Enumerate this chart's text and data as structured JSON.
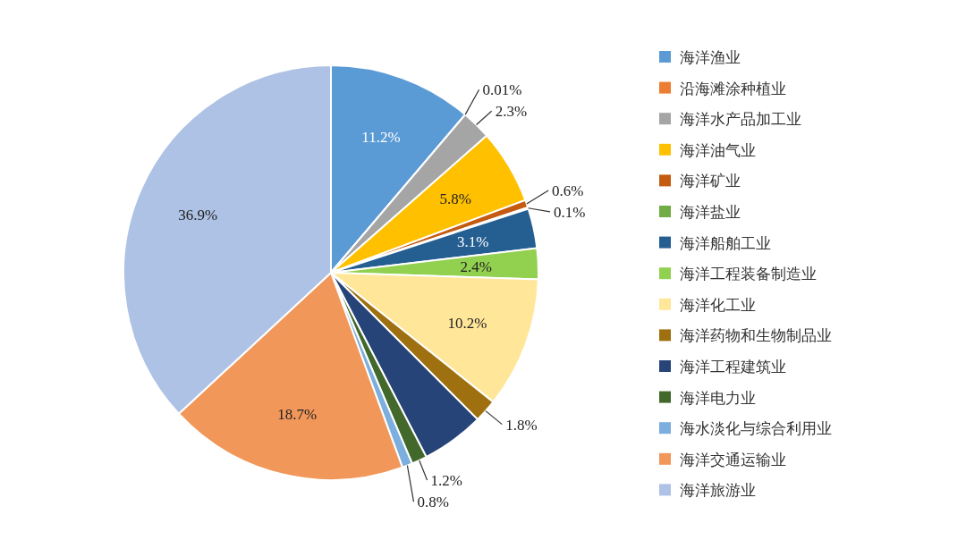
{
  "chart_data": {
    "type": "pie",
    "legend": "right",
    "categories": [
      "海洋渔业",
      "沿海滩涂种植业",
      "海洋水产品加工业",
      "海洋油气业",
      "海洋矿业",
      "海洋盐业",
      "海洋船舶工业",
      "海洋工程装备制造业",
      "海洋化工业",
      "海洋药物和生物制品业",
      "海洋工程建筑业",
      "海洋电力业",
      "海水淡化与综合利用业",
      "海洋交通运输业",
      "海洋旅游业"
    ],
    "values": [
      11.2,
      0.01,
      2.3,
      5.8,
      0.6,
      0.1,
      3.1,
      2.4,
      10.2,
      1.8,
      4.89,
      1.2,
      0.8,
      18.7,
      36.9
    ],
    "value_labels": [
      "11.2%",
      "0.01%",
      "2.3%",
      "5.8%",
      "0.6%",
      "0.1%",
      "3.1%",
      "2.4%",
      "10.2%",
      "1.8%",
      null,
      "1.2%",
      "0.8%",
      "18.7%",
      "36.9%"
    ],
    "colors": [
      "#5b9bd5",
      "#ed7d31",
      "#a5a5a5",
      "#ffc000",
      "#c55a11",
      "#70ad47",
      "#255e91",
      "#92d050",
      "#ffe699",
      "#9e7010",
      "#264478",
      "#43682b",
      "#7cafdd",
      "#f1975a",
      "#adc2e5"
    ]
  }
}
